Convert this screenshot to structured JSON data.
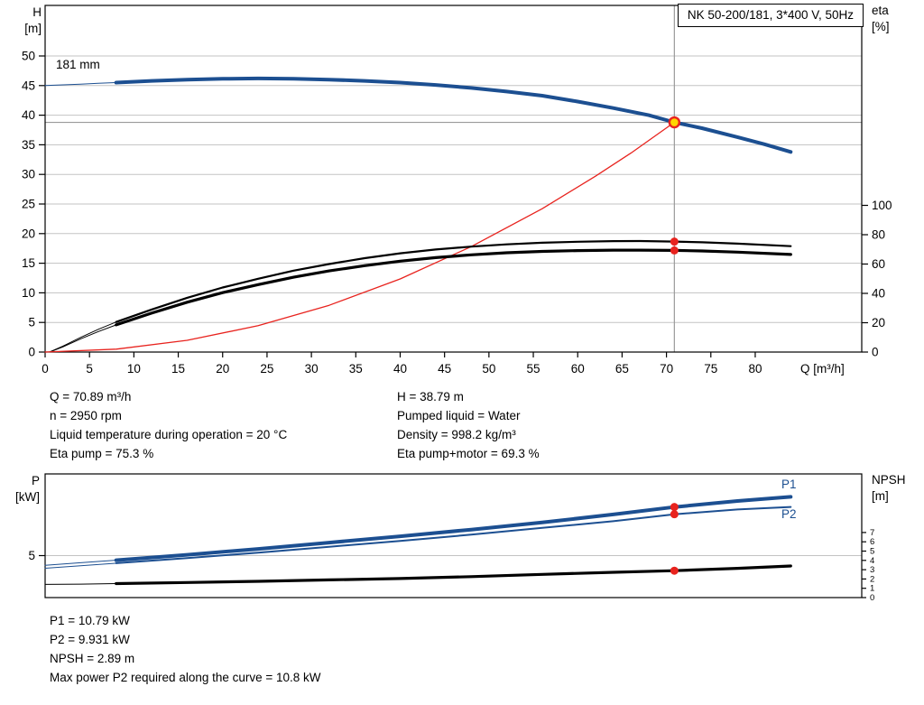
{
  "title_box": "NK 50-200/181, 3*400 V, 50Hz",
  "top_chart": {
    "y_left_title": [
      "H",
      "[m]"
    ],
    "y_right_title": [
      "eta",
      "[%]"
    ],
    "x_title": "Q [m³/h]",
    "impeller": "181 mm"
  },
  "bottom_chart": {
    "y_left_title": [
      "P",
      "[kW]"
    ],
    "y_right_title": [
      "NPSH",
      "[m]"
    ],
    "p1_label": "P1",
    "p2_label": "P2"
  },
  "info": {
    "left": [
      "Q = 70.89 m³/h",
      "n = 2950 rpm",
      "Liquid temperature during operation = 20 °C",
      "Eta pump = 75.3 %"
    ],
    "right": [
      "H = 38.79 m",
      "Pumped liquid = Water",
      "Density = 998.2 kg/m³",
      "Eta pump+motor = 69.3 %"
    ]
  },
  "results": [
    "P1 = 10.79 kW",
    "P2 = 9.931 kW",
    "NPSH = 2.89 m",
    "Max power P2 required along the curve = 10.8 kW"
  ],
  "colors": {
    "blue": "#1c4f91",
    "black": "#000000",
    "red": "#e8231e",
    "yellow": "#ffd500",
    "grid": "#c3c3c3",
    "crosshair": "#9a9a9a"
  },
  "chart_data": [
    {
      "type": "line",
      "title": "NK 50-200/181, 3*400 V, 50Hz",
      "xlabel": "Q [m³/h]",
      "x_ticks": [
        0,
        5,
        10,
        15,
        20,
        25,
        30,
        35,
        40,
        45,
        50,
        55,
        60,
        65,
        70,
        75,
        80
      ],
      "xlim": [
        0,
        92
      ],
      "left_axis": {
        "label": "H [m]",
        "ticks": [
          0,
          5,
          10,
          15,
          20,
          25,
          30,
          35,
          40,
          45,
          50
        ],
        "gridlines": [
          5,
          10,
          15,
          20,
          25,
          30,
          35,
          40,
          45,
          50
        ],
        "lim": [
          0,
          58.5
        ]
      },
      "right_axis": {
        "label": "eta [%]",
        "ticks": [
          0,
          20,
          40,
          60,
          80,
          100
        ],
        "lim": [
          0,
          236
        ]
      },
      "annotation": "181 mm",
      "crosshair": {
        "q": 70.89,
        "h": 38.79
      },
      "series": [
        {
          "name": "hq-curve-extension",
          "axis": "left",
          "color": "blue",
          "width": 1,
          "points": [
            [
              0,
              45.0
            ],
            [
              2,
              45.12
            ],
            [
              4,
              45.25
            ],
            [
              6,
              45.38
            ],
            [
              8,
              45.5
            ]
          ]
        },
        {
          "name": "eta-pump-extension",
          "axis": "right",
          "color": "black",
          "width": 1,
          "points": [
            [
              0.5,
              0
            ],
            [
              2,
              4
            ],
            [
              4,
              10
            ],
            [
              6,
              15.5
            ],
            [
              8,
              20.5
            ]
          ]
        },
        {
          "name": "eta-pump-motor-extension",
          "axis": "right",
          "color": "black",
          "width": 1,
          "points": [
            [
              0.5,
              0
            ],
            [
              2,
              3.5
            ],
            [
              4,
              9
            ],
            [
              6,
              14
            ],
            [
              8,
              18.5
            ]
          ]
        },
        {
          "name": "duty-parabola",
          "axis": "left",
          "color": "red",
          "width": 1.3,
          "points": [
            [
              0,
              0
            ],
            [
              8,
              0.49
            ],
            [
              16,
              1.98
            ],
            [
              24,
              4.45
            ],
            [
              32,
              7.9
            ],
            [
              40,
              12.35
            ],
            [
              48,
              17.8
            ],
            [
              56,
              24.2
            ],
            [
              62,
              29.7
            ],
            [
              66,
              33.6
            ],
            [
              70.89,
              38.79
            ]
          ]
        },
        {
          "name": "eta-pump-curve",
          "axis": "right",
          "color": "black",
          "width": 2.2,
          "points": [
            [
              8,
              20.5
            ],
            [
              12,
              29
            ],
            [
              16,
              37
            ],
            [
              20,
              44
            ],
            [
              24,
              50
            ],
            [
              28,
              55.5
            ],
            [
              32,
              60
            ],
            [
              36,
              64
            ],
            [
              40,
              67.3
            ],
            [
              44,
              69.9
            ],
            [
              48,
              71.9
            ],
            [
              52,
              73.4
            ],
            [
              56,
              74.5
            ],
            [
              60,
              75.2
            ],
            [
              64,
              75.6
            ],
            [
              67,
              75.7
            ],
            [
              70.89,
              75.3
            ],
            [
              74,
              74.8
            ],
            [
              78,
              73.9
            ],
            [
              84,
              72.2
            ]
          ]
        },
        {
          "name": "eta-pump-motor-curve",
          "axis": "right",
          "color": "black",
          "width": 3.2,
          "points": [
            [
              8,
              18.5
            ],
            [
              12,
              26.5
            ],
            [
              16,
              34
            ],
            [
              20,
              40.5
            ],
            [
              24,
              46
            ],
            [
              28,
              51
            ],
            [
              32,
              55.3
            ],
            [
              36,
              58.9
            ],
            [
              40,
              62
            ],
            [
              44,
              64.4
            ],
            [
              48,
              66.3
            ],
            [
              52,
              67.7
            ],
            [
              56,
              68.6
            ],
            [
              60,
              69.2
            ],
            [
              64,
              69.5
            ],
            [
              67,
              69.5
            ],
            [
              70.89,
              69.3
            ],
            [
              74,
              68.9
            ],
            [
              78,
              68.1
            ],
            [
              84,
              66.5
            ]
          ]
        },
        {
          "name": "hq-curve",
          "axis": "left",
          "color": "blue",
          "width": 4,
          "points": [
            [
              8,
              45.5
            ],
            [
              12,
              45.8
            ],
            [
              16,
              46.0
            ],
            [
              20,
              46.15
            ],
            [
              24,
              46.2
            ],
            [
              28,
              46.15
            ],
            [
              32,
              46.0
            ],
            [
              36,
              45.8
            ],
            [
              40,
              45.5
            ],
            [
              44,
              45.1
            ],
            [
              48,
              44.6
            ],
            [
              52,
              44.0
            ],
            [
              56,
              43.3
            ],
            [
              60,
              42.3
            ],
            [
              64,
              41.2
            ],
            [
              68,
              40.0
            ],
            [
              70.89,
              38.79
            ],
            [
              74,
              37.8
            ],
            [
              78,
              36.3
            ],
            [
              81,
              35.1
            ],
            [
              84,
              33.8
            ]
          ]
        }
      ],
      "markers": {
        "duty_point": {
          "q": 70.89,
          "h": 38.79
        },
        "dots": [
          {
            "q": 70.89,
            "value": 75.3,
            "axis": "right"
          },
          {
            "q": 70.89,
            "value": 69.3,
            "axis": "right"
          }
        ]
      }
    },
    {
      "type": "line",
      "xlabel": "Q [m³/h]",
      "xlim": [
        0,
        92
      ],
      "left_axis": {
        "label": "P [kW]",
        "ticks": [
          5
        ],
        "gridlines": [
          5
        ],
        "lim": [
          0,
          14.7
        ]
      },
      "right_axis": {
        "label": "NPSH [m]",
        "ticks": [
          0,
          1,
          2,
          3,
          4,
          5,
          6,
          7
        ],
        "lim": [
          0,
          13.3
        ]
      },
      "series": [
        {
          "name": "p1-extension",
          "axis": "left",
          "color": "blue",
          "width": 1,
          "points": [
            [
              0,
              3.85
            ],
            [
              4,
              4.15
            ],
            [
              8,
              4.45
            ]
          ]
        },
        {
          "name": "p2-extension",
          "axis": "left",
          "color": "blue",
          "width": 1,
          "points": [
            [
              0,
              3.5
            ],
            [
              4,
              3.8
            ],
            [
              8,
              4.1
            ]
          ]
        },
        {
          "name": "npsh-extension",
          "axis": "right",
          "color": "black",
          "width": 1,
          "points": [
            [
              0,
              1.42
            ],
            [
              4,
              1.45
            ],
            [
              8,
              1.5
            ]
          ]
        },
        {
          "name": "p1-curve",
          "axis": "left",
          "color": "blue",
          "width": 4,
          "points": [
            [
              8,
              4.45
            ],
            [
              16,
              5.1
            ],
            [
              24,
              5.8
            ],
            [
              32,
              6.55
            ],
            [
              40,
              7.3
            ],
            [
              48,
              8.1
            ],
            [
              56,
              8.95
            ],
            [
              64,
              9.9
            ],
            [
              70.89,
              10.79
            ],
            [
              78,
              11.5
            ],
            [
              84,
              12.0
            ]
          ]
        },
        {
          "name": "p2-curve",
          "axis": "left",
          "color": "blue",
          "width": 2,
          "points": [
            [
              8,
              4.1
            ],
            [
              16,
              4.7
            ],
            [
              24,
              5.35
            ],
            [
              32,
              6.05
            ],
            [
              40,
              6.75
            ],
            [
              48,
              7.5
            ],
            [
              56,
              8.3
            ],
            [
              64,
              9.1
            ],
            [
              70.89,
              9.93
            ],
            [
              78,
              10.5
            ],
            [
              84,
              10.8
            ]
          ]
        },
        {
          "name": "npsh-curve",
          "axis": "right",
          "color": "black",
          "width": 3.2,
          "points": [
            [
              8,
              1.5
            ],
            [
              16,
              1.62
            ],
            [
              24,
              1.75
            ],
            [
              32,
              1.9
            ],
            [
              40,
              2.05
            ],
            [
              48,
              2.25
            ],
            [
              56,
              2.5
            ],
            [
              64,
              2.72
            ],
            [
              70.89,
              2.89
            ],
            [
              78,
              3.15
            ],
            [
              84,
              3.4
            ]
          ]
        }
      ],
      "markers": {
        "dots": [
          {
            "q": 70.89,
            "value": 10.79,
            "axis": "left"
          },
          {
            "q": 70.89,
            "value": 9.931,
            "axis": "left"
          },
          {
            "q": 70.89,
            "value": 2.89,
            "axis": "right"
          }
        ]
      }
    }
  ]
}
